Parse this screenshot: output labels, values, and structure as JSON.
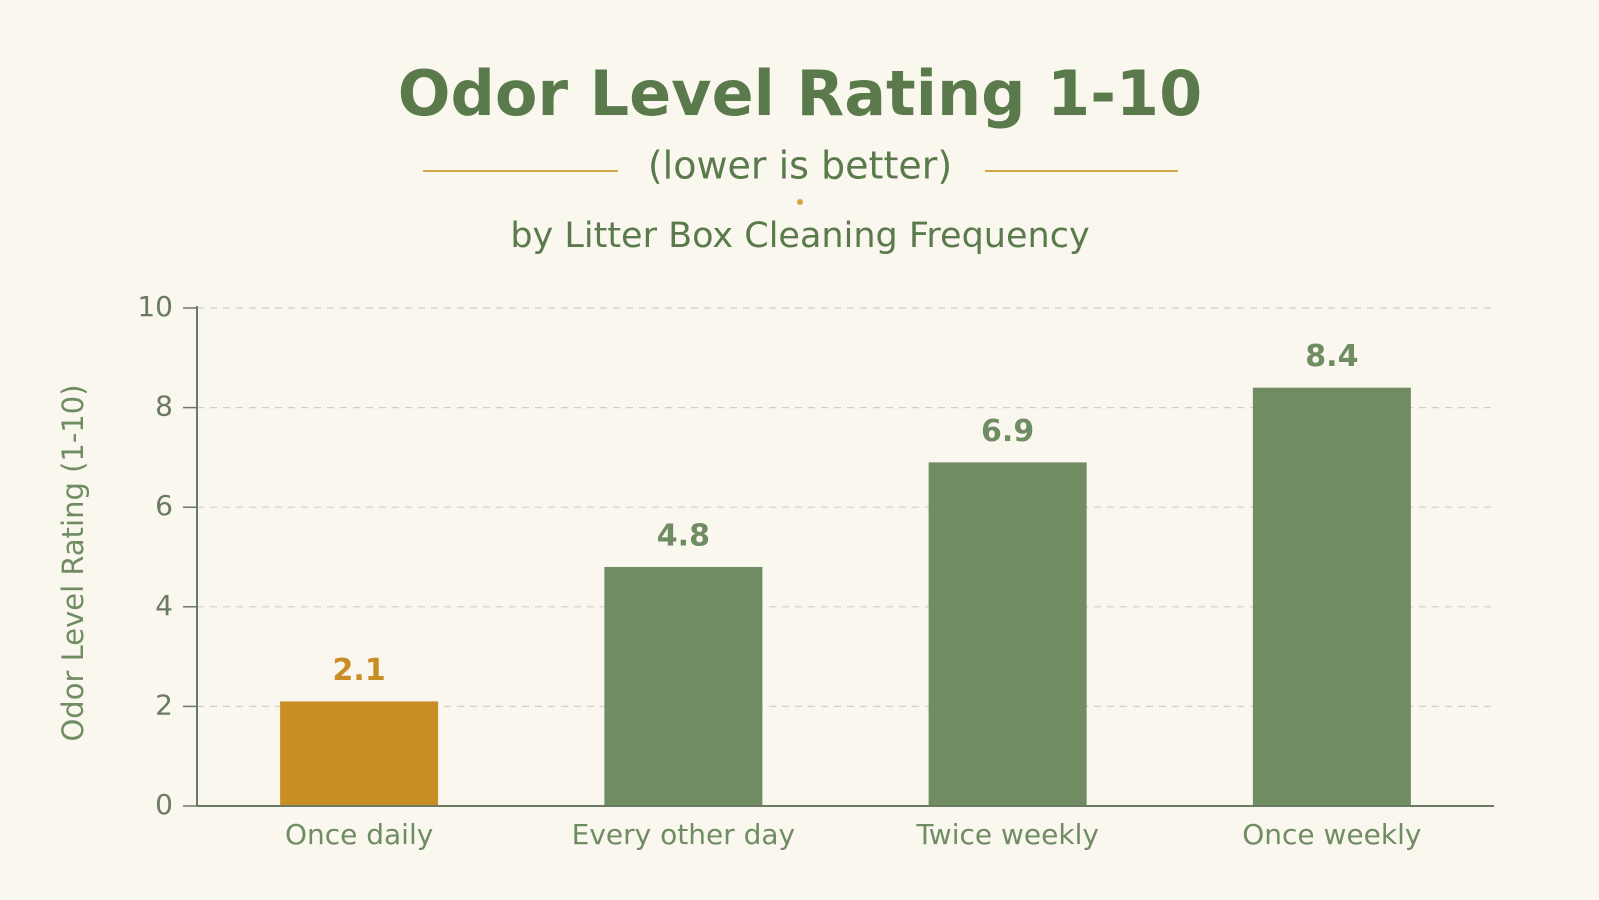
{
  "chart_data": {
    "type": "bar",
    "title": "Odor Level Rating 1-10",
    "subtitle": "(lower is better)",
    "subtitle2": "by Litter Box Cleaning Frequency",
    "y_label": "Odor Level Rating (1-10)",
    "categories": [
      "Once daily",
      "Every other day",
      "Twice weekly",
      "Once weekly"
    ],
    "values": [
      2.1,
      4.8,
      6.9,
      8.4
    ],
    "colors": [
      "#c98d26",
      "#6f8c62",
      "#6f8c62",
      "#6f8c62"
    ],
    "ylim": [
      0,
      10
    ],
    "yticks": [
      0,
      2,
      4,
      6,
      8,
      10
    ],
    "grid": true
  }
}
